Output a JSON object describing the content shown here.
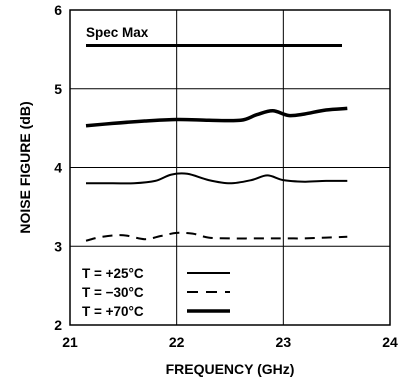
{
  "chart_data": {
    "type": "line",
    "title": "",
    "xlabel": "FREQUENCY (GHz)",
    "ylabel": "NOISE FIGURE (dB)",
    "xlim": [
      21,
      24
    ],
    "ylim": [
      2,
      6
    ],
    "xticks": [
      21,
      22,
      23,
      24
    ],
    "yticks": [
      2,
      3,
      4,
      5,
      6
    ],
    "grid": true,
    "legend": "bottom-left",
    "annotations": [
      {
        "text": "Spec Max",
        "x": 21.15,
        "y": 5.72
      }
    ],
    "spec_line": {
      "x": [
        21.15,
        23.55
      ],
      "y": [
        5.55,
        5.55
      ]
    },
    "series": [
      {
        "name": "T = +25°C",
        "style": "solid",
        "x": [
          21.15,
          21.4,
          21.6,
          21.8,
          21.95,
          22.1,
          22.3,
          22.5,
          22.7,
          22.85,
          23.0,
          23.2,
          23.4,
          23.6
        ],
        "y": [
          3.8,
          3.8,
          3.8,
          3.83,
          3.91,
          3.92,
          3.84,
          3.8,
          3.84,
          3.9,
          3.84,
          3.82,
          3.83,
          3.83
        ]
      },
      {
        "name": "T = −30°C",
        "style": "dashed",
        "x": [
          21.15,
          21.3,
          21.5,
          21.7,
          21.85,
          22.0,
          22.15,
          22.3,
          22.5,
          22.8,
          23.0,
          23.2,
          23.4,
          23.6
        ],
        "y": [
          3.07,
          3.12,
          3.14,
          3.09,
          3.13,
          3.17,
          3.16,
          3.11,
          3.1,
          3.1,
          3.1,
          3.1,
          3.11,
          3.12
        ]
      },
      {
        "name": "T = +70°C",
        "style": "thick",
        "x": [
          21.15,
          21.4,
          21.7,
          22.0,
          22.3,
          22.6,
          22.75,
          22.9,
          23.05,
          23.2,
          23.4,
          23.6
        ],
        "y": [
          4.53,
          4.56,
          4.59,
          4.61,
          4.6,
          4.6,
          4.67,
          4.72,
          4.66,
          4.68,
          4.73,
          4.75
        ]
      }
    ]
  }
}
